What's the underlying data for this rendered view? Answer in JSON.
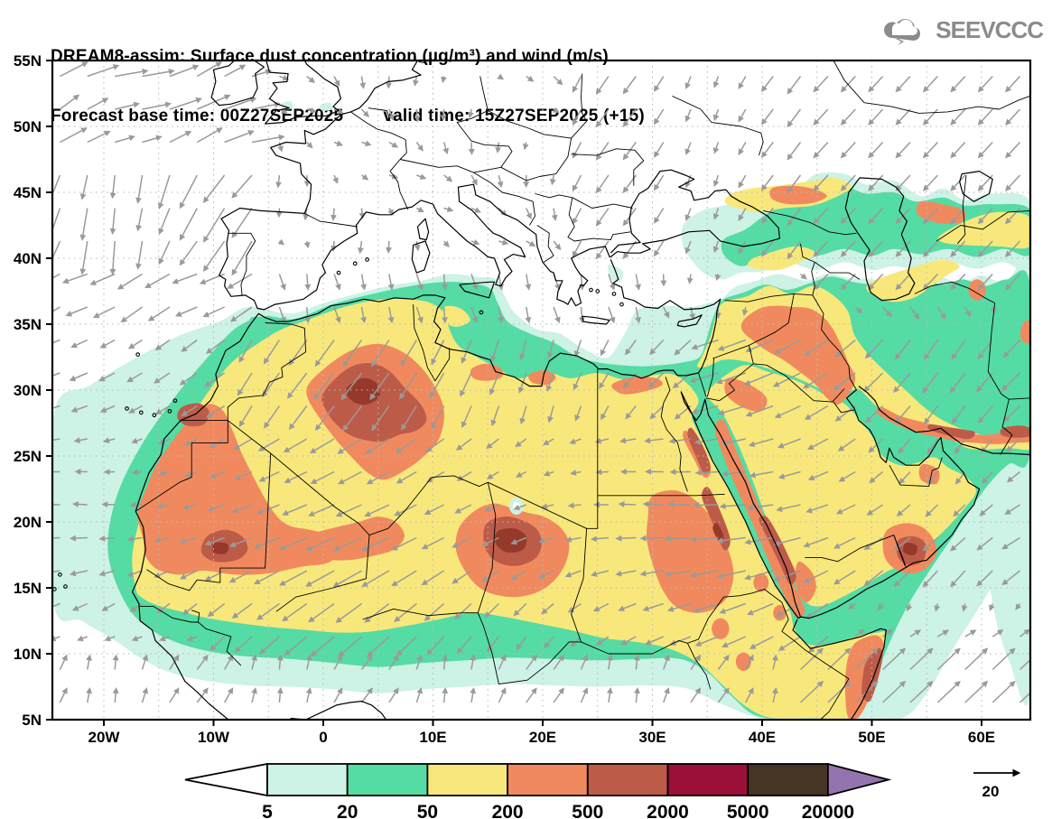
{
  "title": {
    "line1": "DREAM8-assim: Surface dust concentration (µg/m³) and wind (m/s)"
  },
  "subtitle": {
    "base": "Forecast base time: 00Z27SEP2025",
    "valid": "valid time: 15Z27SEP2025 (+15)"
  },
  "logo": {
    "text": "SEEVCCC",
    "icon": "cloud-icon",
    "color": "#8b8b8b"
  },
  "axes": {
    "lat_ticks": [
      "55N",
      "50N",
      "45N",
      "40N",
      "35N",
      "30N",
      "25N",
      "20N",
      "15N",
      "10N",
      "5N"
    ],
    "lat_values": [
      55,
      50,
      45,
      40,
      35,
      30,
      25,
      20,
      15,
      10,
      5
    ],
    "lon_ticks": [
      "20W",
      "10W",
      "0",
      "10E",
      "20E",
      "30E",
      "40E",
      "50E",
      "60E"
    ],
    "lon_values": [
      -20,
      -10,
      0,
      10,
      20,
      30,
      40,
      50,
      60
    ]
  },
  "colorbar": {
    "labels": [
      "5",
      "20",
      "50",
      "200",
      "500",
      "2000",
      "5000",
      "20000"
    ],
    "segment_colors": [
      "#cdf2e6",
      "#55dba4",
      "#f8e87b",
      "#f08a5e",
      "#bd5b49",
      "#9b1039",
      "#463425"
    ],
    "under_color": "#ffffff",
    "over_color": "#9573ae"
  },
  "wind_reference": {
    "label": "20"
  },
  "colors": {
    "outline": "#000000",
    "arrow": "#9a9a9a",
    "grid": "#b9b9b9",
    "core": "#96392b",
    "frame": "#000000"
  },
  "chart_data": {
    "type": "heatmap",
    "subtype": "filled_contour_map_with_wind_vectors",
    "model": "DREAM8-assim",
    "variable": "Surface dust concentration",
    "units": "µg/m³",
    "wind_units": "m/s",
    "wind_reference": 20,
    "base_time": "00Z27SEP2025",
    "valid_time": "15Z27SEP2025",
    "lead": "+15",
    "contour_levels": [
      5,
      20,
      50,
      200,
      500,
      2000,
      5000,
      20000
    ],
    "lon_range": [
      -24.7,
      64.4
    ],
    "lat_range": [
      5,
      55
    ],
    "lon_tick_step_deg": 10,
    "lat_tick_step_deg": 5,
    "grid": "dotted 5-degree graticule",
    "legend_position": "bottom",
    "features": [
      {
        "region": "Central Algeria (30N, 3E)",
        "peak_concentration": "2000-5000"
      },
      {
        "region": "Mali-Mauritania border (18N, 9W)",
        "peak_concentration": "2000-5000"
      },
      {
        "region": "W Sahara / Morocco corner (28N, 12W)",
        "peak_concentration": "500-2000"
      },
      {
        "region": "Bodele / Chad (18N, 17E)",
        "peak_concentration": "2000-5000"
      },
      {
        "region": "Sudan east of Nile (17N, 33E)",
        "peak_concentration": "200-500"
      },
      {
        "region": "Red Sea coastal hills (15-27N)",
        "peak_concentration": "500-2000"
      },
      {
        "region": "Iraq / E Syria (33N, 43E)",
        "peak_concentration": "200-500"
      },
      {
        "region": "S Iran Makran coast (26.5N, 57E)",
        "peak_concentration": "500-2000"
      },
      {
        "region": "Oman interior (17.5N, 53E)",
        "peak_concentration": "2000-5000"
      },
      {
        "region": "Somalia coast (8N, 50E)",
        "peak_concentration": "500-2000"
      },
      {
        "region": "NE of Black Sea (44.5N, 43E)",
        "peak_concentration": "200-500"
      },
      {
        "region": "Saharan background 12N-33N",
        "peak_concentration": "50-200"
      }
    ],
    "wind_notes": [
      "Cyclonically sheared flow over NE Atlantic west of Iberia",
      "NE harmattan (~10 m/s) over the Sahara pointing SW",
      "Northerlies over the Mediterranean onto the Libyan/Egyptian coast",
      "Strong SW monsoon flow (~15-20 m/s) over the Arabian Sea pointing NE"
    ]
  }
}
